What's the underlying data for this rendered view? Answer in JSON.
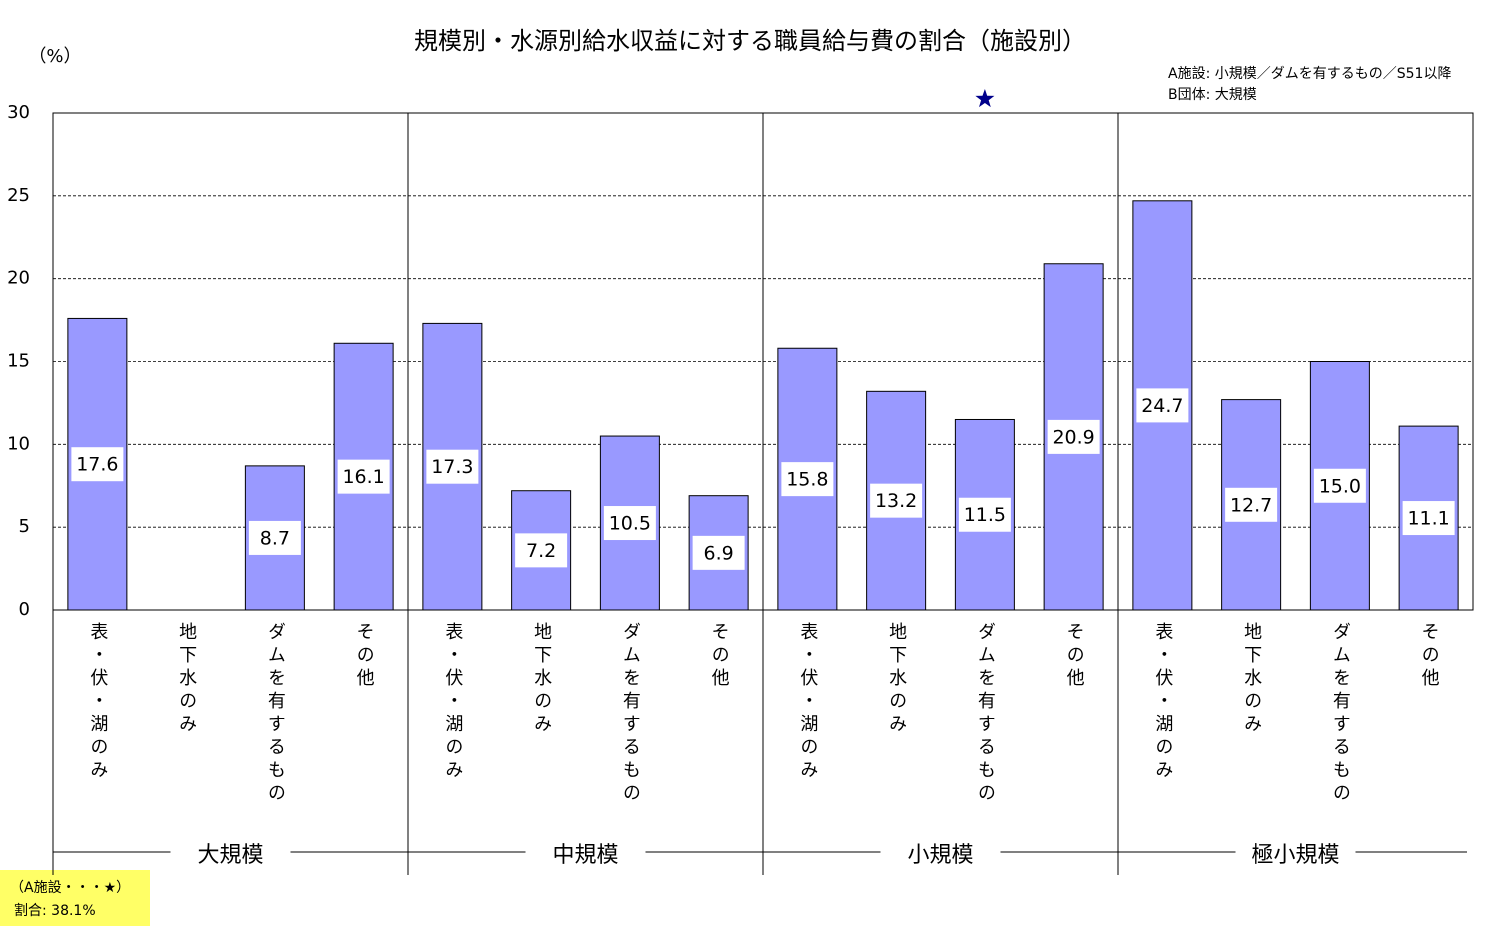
{
  "chart_data": {
    "type": "bar",
    "title": "規模別・水源別給水収益に対する職員給与費の割合（施設別）",
    "y_unit": "（%）",
    "notes": [
      "A施設: 小規模／ダムを有するもの／S51以降",
      "B団体: 大規模"
    ],
    "groups": [
      "大規模",
      "中規模",
      "小規模",
      "極小規模"
    ],
    "categories": [
      "表・伏・湖のみ",
      "地下水のみ",
      "ダムを有するもの",
      "その他",
      "表・伏・湖のみ",
      "地下水のみ",
      "ダムを有するもの",
      "その他",
      "表・伏・湖のみ",
      "地下水のみ",
      "ダムを有するもの",
      "その他",
      "表・伏・湖のみ",
      "地下水のみ",
      "ダムを有するもの",
      "その他"
    ],
    "values": [
      17.6,
      null,
      8.7,
      16.1,
      17.3,
      7.2,
      10.5,
      6.9,
      15.8,
      13.2,
      11.5,
      20.9,
      24.7,
      12.7,
      15.0,
      11.1
    ],
    "value_labels": [
      "17.6",
      null,
      "8.7",
      "16.1",
      "17.3",
      "7.2",
      "10.5",
      "6.9",
      "15.8",
      "13.2",
      "11.5",
      "20.9",
      "24.7",
      "12.7",
      "15.0",
      "11.1"
    ],
    "color": "#9999ff",
    "ylim": [
      0,
      30
    ],
    "yticks": [
      0,
      5,
      10,
      15,
      20,
      25,
      30
    ],
    "grid": true,
    "marker": {
      "group": "小規模",
      "category": "ダムを有するもの",
      "value": 38.1,
      "color": "#00008b",
      "label": "（A施設・・・★）",
      "value_label": "割合: 38.1%"
    }
  }
}
